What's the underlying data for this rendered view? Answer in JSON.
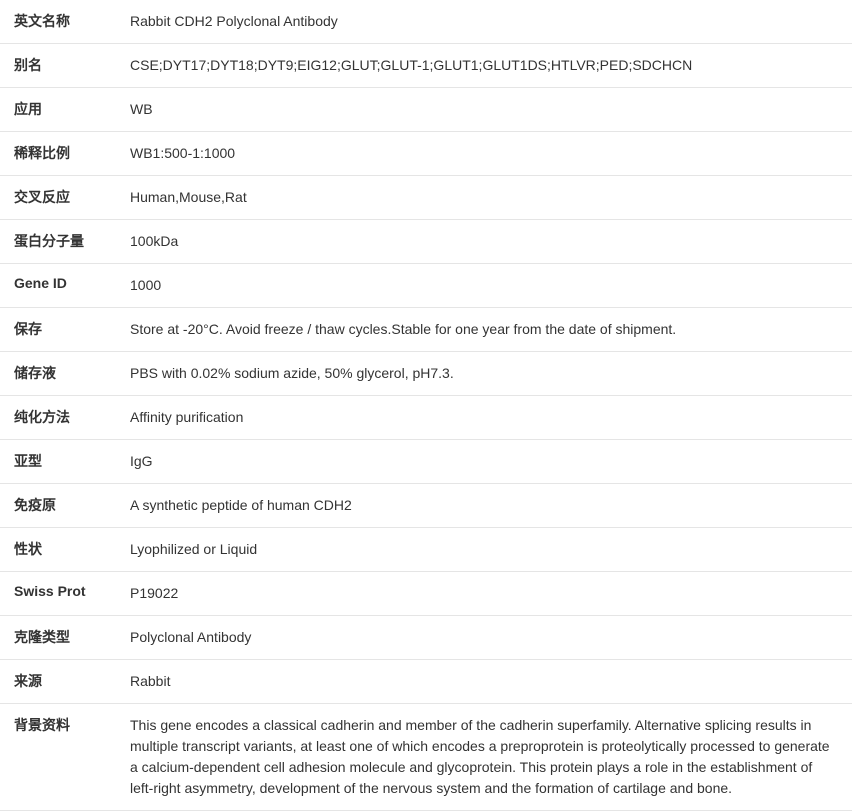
{
  "rows": [
    {
      "label": "英文名称",
      "value": "Rabbit CDH2 Polyclonal Antibody"
    },
    {
      "label": "别名",
      "value": "CSE;DYT17;DYT18;DYT9;EIG12;GLUT;GLUT-1;GLUT1;GLUT1DS;HTLVR;PED;SDCHCN"
    },
    {
      "label": "应用",
      "value": "WB"
    },
    {
      "label": "稀释比例",
      "value": "WB1:500-1:1000"
    },
    {
      "label": "交叉反应",
      "value": "Human,Mouse,Rat"
    },
    {
      "label": "蛋白分子量",
      "value": "100kDa"
    },
    {
      "label": "Gene ID",
      "value": "1000"
    },
    {
      "label": "保存",
      "value": "Store at -20°C. Avoid freeze / thaw cycles.Stable for one year from the date of shipment."
    },
    {
      "label": "储存液",
      "value": "PBS with 0.02% sodium azide, 50% glycerol, pH7.3."
    },
    {
      "label": "纯化方法",
      "value": "Affinity purification"
    },
    {
      "label": "亚型",
      "value": "IgG"
    },
    {
      "label": "免疫原",
      "value": "A synthetic peptide of human CDH2"
    },
    {
      "label": "性状",
      "value": "Lyophilized or Liquid"
    },
    {
      "label": "Swiss Prot",
      "value": "P19022"
    },
    {
      "label": "克隆类型",
      "value": "Polyclonal Antibody"
    },
    {
      "label": "来源",
      "value": "Rabbit"
    },
    {
      "label": "背景资料",
      "value": "This gene encodes a classical cadherin and member of the cadherin superfamily. Alternative splicing results in multiple transcript variants, at least one of which encodes a preproprotein is proteolytically processed to generate a calcium-dependent cell adhesion molecule and glycoprotein. This protein plays a role in the establishment of left-right asymmetry, development of the nervous system and the formation of cartilage and bone."
    }
  ]
}
